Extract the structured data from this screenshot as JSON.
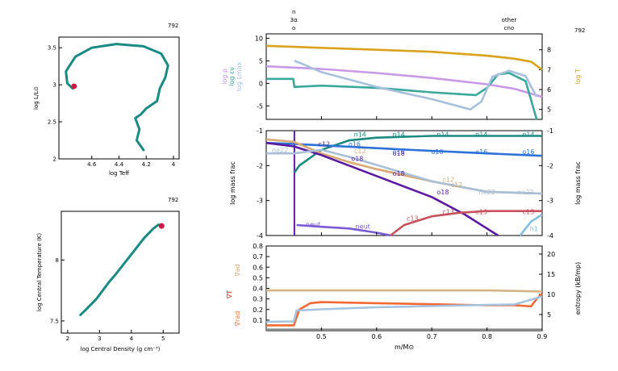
{
  "model_number": "792",
  "charts": {
    "hr": {
      "xlabel": "log Teff",
      "ylabel": "log L/L⊙",
      "xticks": [
        "4.6",
        "4.4",
        "4.2",
        "4"
      ],
      "yticks": [
        "2",
        "2.5",
        "3",
        "3.5"
      ],
      "xlim": [
        4.0,
        4.8
      ],
      "ylim": [
        2.0,
        3.6
      ],
      "track_color": "#1a8a85",
      "marker_color": "#cc1a44",
      "track": [
        [
          4.22,
          2.12
        ],
        [
          4.27,
          2.25
        ],
        [
          4.25,
          2.4
        ],
        [
          4.28,
          2.55
        ],
        [
          4.24,
          2.6
        ],
        [
          4.2,
          2.68
        ],
        [
          4.12,
          2.78
        ],
        [
          4.1,
          2.95
        ],
        [
          4.06,
          3.1
        ],
        [
          4.04,
          3.26
        ],
        [
          4.09,
          3.42
        ],
        [
          4.22,
          3.52
        ],
        [
          4.42,
          3.55
        ],
        [
          4.6,
          3.5
        ],
        [
          4.72,
          3.38
        ],
        [
          4.79,
          3.18
        ],
        [
          4.78,
          3.02
        ],
        [
          4.74,
          2.95
        ],
        [
          4.73,
          2.98
        ]
      ],
      "current": [
        4.73,
        2.98
      ]
    },
    "center": {
      "xlabel": "log Central Density (g cm⁻³)",
      "ylabel": "log Central Temperature (K)",
      "xticks": [
        "2",
        "3",
        "4",
        "5"
      ],
      "yticks": [
        "7.5",
        "8"
      ],
      "xlim": [
        1.8,
        5.5
      ],
      "ylim": [
        7.4,
        8.4
      ],
      "track_color": "#1a8a85",
      "marker_color": "#cc1a44",
      "track": [
        [
          2.4,
          7.55
        ],
        [
          2.6,
          7.6
        ],
        [
          2.9,
          7.68
        ],
        [
          3.1,
          7.75
        ],
        [
          3.3,
          7.82
        ],
        [
          3.5,
          7.88
        ],
        [
          3.8,
          7.98
        ],
        [
          4.1,
          8.08
        ],
        [
          4.4,
          8.18
        ],
        [
          4.7,
          8.26
        ],
        [
          4.85,
          8.29
        ],
        [
          4.95,
          8.28
        ]
      ],
      "current": [
        4.95,
        8.28
      ]
    },
    "structure": {
      "type": "line",
      "xlim": [
        0.4,
        0.9
      ],
      "top_labels": [
        {
          "text": "n",
          "x": 0.45,
          "row": 0
        },
        {
          "text": "3α",
          "x": 0.45,
          "row": 1
        },
        {
          "text": "o",
          "x": 0.45,
          "row": 2
        },
        {
          "text": "other",
          "x": 0.84,
          "row": 1
        },
        {
          "text": "cno",
          "x": 0.84,
          "row": 2
        }
      ],
      "panel1": {
        "ylim_left": [
          -8,
          11
        ],
        "yticks_left": [
          "-5",
          "0",
          "5",
          "10"
        ],
        "ylim_right": [
          4.5,
          8.8
        ],
        "yticks_right": [
          "5",
          "6",
          "7",
          "8"
        ],
        "left_labels": [
          {
            "text": "log ρ",
            "color": "#c68ee6"
          },
          {
            "text": "log εν",
            "color": "#3aa89c"
          },
          {
            "text": "log εmax",
            "color": "#a4bedd"
          }
        ],
        "right_label": {
          "text": "log T",
          "color": "#d4a02a"
        },
        "series": [
          {
            "name": "log T",
            "color": "#d9a21a",
            "axis": "right",
            "x": [
              0.4,
              0.5,
              0.6,
              0.7,
              0.8,
              0.85,
              0.88,
              0.9
            ],
            "y": [
              8.2,
              8.1,
              8.0,
              7.9,
              7.7,
              7.55,
              7.4,
              7.0
            ]
          },
          {
            "name": "log ρ",
            "color": "#c999e8",
            "axis": "left",
            "x": [
              0.4,
              0.5,
              0.6,
              0.7,
              0.8,
              0.85,
              0.9
            ],
            "y": [
              3.8,
              3.2,
              2.3,
              1.2,
              -0.2,
              -1.2,
              -3.0
            ]
          },
          {
            "name": "log εν",
            "color": "#3aa89c",
            "axis": "left",
            "x": [
              0.4,
              0.449,
              0.451,
              0.5,
              0.6,
              0.7,
              0.78,
              0.8,
              0.82,
              0.84,
              0.87,
              0.89
            ],
            "y": [
              1.0,
              1.0,
              -0.8,
              -0.5,
              -1.0,
              -2.0,
              -2.6,
              -1.0,
              2.0,
              2.3,
              0.5,
              -8.0
            ]
          },
          {
            "name": "log εmax",
            "color": "#a7c0de",
            "axis": "left",
            "x": [
              0.451,
              0.46,
              0.5,
              0.6,
              0.7,
              0.77,
              0.79,
              0.81,
              0.84,
              0.87,
              0.89
            ],
            "y": [
              5.0,
              4.6,
              2.5,
              -0.8,
              -3.5,
              -5.8,
              -4.0,
              1.5,
              2.8,
              1.6,
              -3.0
            ]
          }
        ]
      },
      "panel2": {
        "ylabel": "log mass frac",
        "ylim": [
          -4,
          -1
        ],
        "yticks": [
          "-4",
          "-3",
          "-2",
          "-1"
        ],
        "series": [
          {
            "name": "n14",
            "color": "#1a8a80",
            "x": [
              0.451,
              0.46,
              0.5,
              0.55,
              0.6,
              0.7,
              0.8,
              0.9
            ],
            "y": [
              -2.2,
              -2.0,
              -1.55,
              -1.28,
              -1.2,
              -1.15,
              -1.15,
              -1.15
            ]
          },
          {
            "name": "o16",
            "color": "#2b73d9",
            "x": [
              0.4,
              0.45,
              0.5,
              0.6,
              0.7,
              0.8,
              0.9
            ],
            "y": [
              -1.35,
              -1.38,
              -1.42,
              -1.5,
              -1.58,
              -1.65,
              -1.72
            ]
          },
          {
            "name": "c12",
            "color": "#d9a873",
            "x": [
              0.4,
              0.45,
              0.5,
              0.55,
              0.6,
              0.7,
              0.8,
              0.9
            ],
            "y": [
              -1.25,
              -1.32,
              -1.65,
              -1.9,
              -2.1,
              -2.45,
              -2.75,
              -2.8
            ]
          },
          {
            "name": "o18",
            "color": "#5c1aa3",
            "x": [
              0.4,
              0.45,
              0.5,
              0.55,
              0.6,
              0.7,
              0.76,
              0.8,
              0.82
            ],
            "y": [
              -1.35,
              -1.45,
              -1.7,
              -2.0,
              -2.3,
              -2.9,
              -3.4,
              -3.8,
              -4.0
            ]
          },
          {
            "name": "ne22",
            "color": "#a9bfd7",
            "x": [
              0.4,
              0.45,
              0.5,
              0.55,
              0.6,
              0.7,
              0.8,
              0.9
            ],
            "y": [
              -1.65,
              -1.65,
              -1.55,
              -1.75,
              -1.98,
              -2.45,
              -2.75,
              -2.8
            ]
          },
          {
            "name": "c13",
            "color": "#c9505a",
            "x": [
              0.625,
              0.65,
              0.7,
              0.75,
              0.8,
              0.9
            ],
            "y": [
              -4.0,
              -3.7,
              -3.45,
              -3.35,
              -3.3,
              -3.3
            ]
          },
          {
            "name": "neut",
            "color": "#7a5ad6",
            "x": [
              0.455,
              0.5,
              0.55,
              0.6,
              0.62,
              0.625
            ],
            "y": [
              -3.7,
              -3.75,
              -3.8,
              -3.92,
              -3.98,
              -4.0
            ]
          },
          {
            "name": "h1",
            "color": "#7fbfe6",
            "x": [
              0.86,
              0.88,
              0.9
            ],
            "y": [
              -4.0,
              -3.6,
              -3.4
            ]
          }
        ],
        "labels": [
          {
            "text": "n14",
            "color": "#1a8a80",
            "x": 0.57,
            "y": -1.1
          },
          {
            "text": "n14",
            "color": "#1a8a80",
            "x": 0.64,
            "y": -1.1
          },
          {
            "text": "n14",
            "color": "#1a8a80",
            "x": 0.72,
            "y": -1.1
          },
          {
            "text": "n14",
            "color": "#1a8a80",
            "x": 0.79,
            "y": -1.1
          },
          {
            "text": "n14",
            "color": "#1a8a80",
            "x": 0.875,
            "y": -1.1
          },
          {
            "text": "o16",
            "color": "#2b73d9",
            "x": 0.56,
            "y": -1.38
          },
          {
            "text": "o16",
            "color": "#2b73d9",
            "x": 0.64,
            "y": -1.6
          },
          {
            "text": "o16",
            "color": "#2b73d9",
            "x": 0.71,
            "y": -1.6
          },
          {
            "text": "o16",
            "color": "#2b73d9",
            "x": 0.79,
            "y": -1.6
          },
          {
            "text": "o16",
            "color": "#2b73d9",
            "x": 0.875,
            "y": -1.6
          },
          {
            "text": "c12",
            "color": "#5c1aa3",
            "x": 0.505,
            "y": -1.38
          },
          {
            "text": "o18",
            "color": "#5c1aa3",
            "x": 0.565,
            "y": -1.8
          },
          {
            "text": "o18",
            "color": "#5c1aa3",
            "x": 0.64,
            "y": -1.65
          },
          {
            "text": "o18",
            "color": "#5c1aa3",
            "x": 0.64,
            "y": -2.22
          },
          {
            "text": "o18",
            "color": "#5c1aa3",
            "x": 0.72,
            "y": -2.75
          },
          {
            "text": "c12",
            "color": "#d9a873",
            "x": 0.57,
            "y": -1.58
          },
          {
            "text": "c12",
            "color": "#d9a873",
            "x": 0.73,
            "y": -2.4
          },
          {
            "text": "c12",
            "color": "#d9a873",
            "x": 0.745,
            "y": -2.55
          },
          {
            "text": "ne22",
            "color": "#a9bfd7",
            "x": 0.425,
            "y": -1.55
          },
          {
            "text": "ne22",
            "color": "#a9bfd7",
            "x": 0.8,
            "y": -2.75
          },
          {
            "text": "ne22",
            "color": "#a9bfd7",
            "x": 0.87,
            "y": -2.75
          },
          {
            "text": "c13",
            "color": "#c9505a",
            "x": 0.665,
            "y": -3.5
          },
          {
            "text": "c13",
            "color": "#c9505a",
            "x": 0.73,
            "y": -3.32
          },
          {
            "text": "c13",
            "color": "#c9505a",
            "x": 0.79,
            "y": -3.32
          },
          {
            "text": "c13",
            "color": "#c9505a",
            "x": 0.875,
            "y": -3.32
          },
          {
            "text": "neut",
            "color": "#7a5ad6",
            "x": 0.485,
            "y": -3.68
          },
          {
            "text": "neut",
            "color": "#7a5ad6",
            "x": 0.575,
            "y": -3.74
          },
          {
            "text": "h1",
            "color": "#7fbfe6",
            "x": 0.885,
            "y": -3.8
          }
        ]
      },
      "panel3": {
        "ylim_left": [
          0,
          0.8
        ],
        "yticks_left": [
          "0",
          "0.1",
          "0.2",
          "0.3",
          "0.4",
          "0.5",
          "0.6",
          "0.7",
          "0.8"
        ],
        "ylim_right": [
          1,
          22
        ],
        "yticks_right": [
          "5",
          "10",
          "15",
          "20"
        ],
        "left_labels": [
          {
            "text": "∇ad",
            "color": "#d9a873"
          },
          {
            "text": "∇T",
            "color": "#e0201a"
          },
          {
            "text": "∇rad",
            "color": "#f2702a"
          }
        ],
        "right_label": "entropy (kB/mp)",
        "series": [
          {
            "name": "∇ad",
            "color": "#d4b483",
            "axis": "left",
            "x": [
              0.4,
              0.5,
              0.6,
              0.7,
              0.8,
              0.9
            ],
            "y": [
              0.38,
              0.38,
              0.38,
              0.38,
              0.38,
              0.37
            ]
          },
          {
            "name": "∇rad",
            "color": "#f26a33",
            "axis": "left",
            "x": [
              0.4,
              0.45,
              0.46,
              0.48,
              0.5,
              0.6,
              0.7,
              0.8,
              0.85,
              0.88,
              0.89,
              0.9
            ],
            "y": [
              0.05,
              0.05,
              0.2,
              0.26,
              0.27,
              0.26,
              0.25,
              0.24,
              0.24,
              0.23,
              0.3,
              0.35
            ]
          },
          {
            "name": "entropy",
            "color": "#a4c3e0",
            "axis": "right",
            "x": [
              0.4,
              0.45,
              0.455,
              0.5,
              0.6,
              0.7,
              0.8,
              0.85,
              0.9
            ],
            "y": [
              3.2,
              3.3,
              6.0,
              6.3,
              6.8,
              7.1,
              7.4,
              7.5,
              9.5
            ]
          },
          {
            "name": "∇T",
            "color": "#888888",
            "axis": "left",
            "x": [
              0.4,
              0.9
            ],
            "y": [
              0.01,
              0.01
            ]
          }
        ]
      },
      "xlabel": "m/M⊙",
      "xticks": [
        "0.5",
        "0.6",
        "0.7",
        "0.8",
        "0.9"
      ]
    }
  }
}
